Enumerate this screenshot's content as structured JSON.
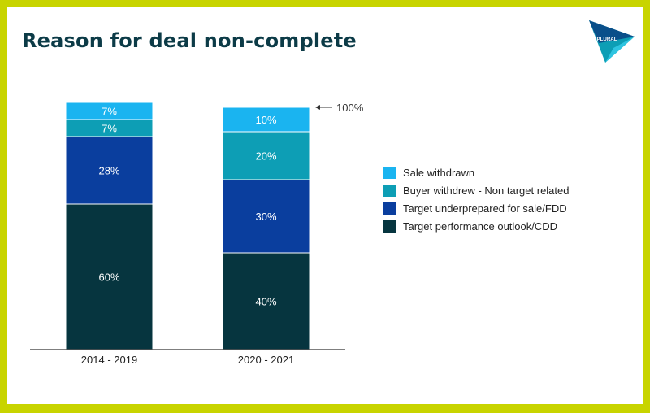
{
  "slide": {
    "title": "Reason for deal non-complete",
    "logo_text": "PLURAL"
  },
  "colors": {
    "frame": "#c8d400",
    "title": "#0c3b47",
    "sale_withdrawn": "#1ab4f0",
    "buyer_withdrew": "#0d9eb5",
    "target_underprepared": "#0a3e9e",
    "target_performance": "#06353f"
  },
  "chart_data": {
    "type": "bar",
    "stacked": true,
    "categories": [
      "2014 - 2019",
      "2020 - 2021"
    ],
    "series": [
      {
        "name": "Target performance outlook/CDD",
        "values": [
          60,
          40
        ],
        "labels": [
          "60%",
          "40%"
        ],
        "color": "#06353f"
      },
      {
        "name": "Target underprepared  for sale/FDD",
        "values": [
          28,
          30
        ],
        "labels": [
          "28%",
          "30%"
        ],
        "color": "#0a3e9e"
      },
      {
        "name": "Buyer withdrew  - Non target related",
        "values": [
          7,
          20
        ],
        "labels": [
          "7%",
          "20%"
        ],
        "color": "#0d9eb5"
      },
      {
        "name": "Sale withdrawn",
        "values": [
          7,
          10
        ],
        "labels": [
          "7%",
          "10%"
        ],
        "color": "#1ab4f0"
      }
    ],
    "annotation": "100%",
    "ylim": [
      0,
      100
    ],
    "legend_position": "right",
    "grid": false
  }
}
